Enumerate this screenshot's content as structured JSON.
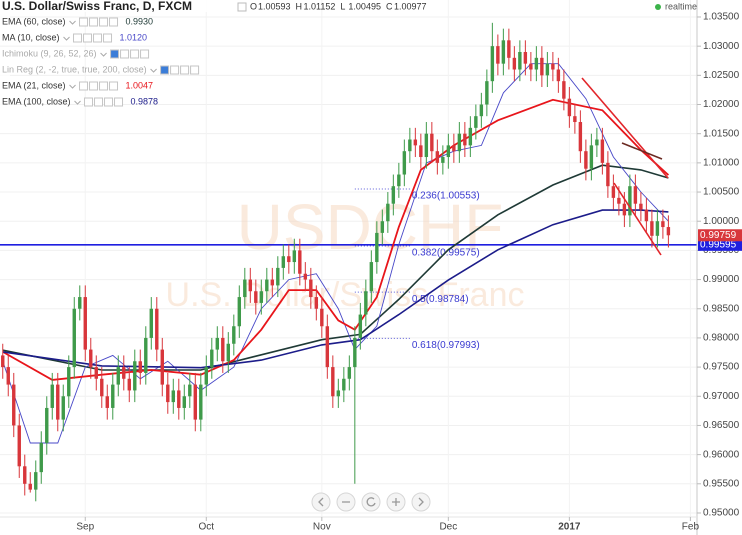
{
  "chart_data": {
    "type": "candlestick",
    "title": "U.S. Dollar/Swiss Franc, D, FXCM",
    "ohlc_header": [
      {
        "key": "O",
        "value": "1.00593"
      },
      {
        "key": "H",
        "value": "1.01152"
      },
      {
        "key": "L",
        "value": "1.00495"
      },
      {
        "key": "C",
        "value": "1.00977"
      }
    ],
    "status": "realtime",
    "watermark": {
      "symbol": "USDCHF",
      "description": "U.S. Dollar/Swiss Franc"
    },
    "up_color": "#3f9a4a",
    "down_color": "#d8363b",
    "x": [
      0,
      1,
      2,
      3,
      4,
      5,
      6,
      7,
      8,
      9,
      10,
      11,
      12,
      13,
      14,
      15,
      16,
      17,
      18,
      19,
      20,
      21,
      22,
      23,
      24,
      25,
      26,
      27,
      28,
      29,
      30,
      31,
      32,
      33,
      34,
      35,
      36,
      37,
      38,
      39,
      40,
      41,
      42,
      43,
      44,
      45,
      46,
      47,
      48,
      49,
      50,
      51,
      52,
      53,
      54,
      55,
      56,
      57,
      58,
      59,
      60,
      61,
      62,
      63,
      64,
      65,
      66,
      67,
      68,
      69,
      70,
      71,
      72,
      73,
      74,
      75,
      76,
      77,
      78,
      79,
      80,
      81,
      82,
      83,
      84,
      85,
      86,
      87,
      88,
      89,
      90,
      91,
      92,
      93,
      94,
      95,
      96,
      97,
      98,
      99,
      100,
      101,
      102,
      103,
      104,
      105,
      106,
      107,
      108,
      109,
      110,
      111,
      112,
      113,
      114,
      115,
      116,
      117,
      118,
      119,
      120,
      121
    ],
    "open": [
      0.977,
      0.975,
      0.972,
      0.965,
      0.958,
      0.955,
      0.954,
      0.957,
      0.962,
      0.968,
      0.972,
      0.966,
      0.97,
      0.975,
      0.985,
      0.987,
      0.978,
      0.975,
      0.973,
      0.97,
      0.968,
      0.972,
      0.975,
      0.973,
      0.971,
      0.976,
      0.974,
      0.98,
      0.985,
      0.978,
      0.972,
      0.969,
      0.971,
      0.968,
      0.97,
      0.972,
      0.966,
      0.972,
      0.975,
      0.978,
      0.98,
      0.976,
      0.979,
      0.982,
      0.987,
      0.99,
      0.988,
      0.986,
      0.988,
      0.99,
      0.989,
      0.992,
      0.994,
      0.993,
      0.995,
      0.991,
      0.99,
      0.987,
      0.985,
      0.982,
      0.975,
      0.97,
      0.971,
      0.973,
      0.975,
      0.98,
      0.984,
      0.988,
      0.993,
      0.998,
      1.0,
      1.003,
      1.006,
      1.008,
      1.012,
      1.014,
      1.013,
      1.011,
      1.015,
      1.012,
      1.01,
      1.011,
      1.013,
      1.012,
      1.015,
      1.013,
      1.016,
      1.018,
      1.02,
      1.024,
      1.03,
      1.027,
      1.031,
      1.028,
      1.026,
      1.029,
      1.027,
      1.026,
      1.028,
      1.025,
      1.027,
      1.026,
      1.024,
      1.021,
      1.018,
      1.017,
      1.012,
      1.009,
      1.013,
      1.014,
      1.01,
      1.006,
      1.004,
      1.003,
      1.001,
      1.006,
      1.003,
      1.002,
      1.0,
      0.9975,
      1.0,
      0.999
    ],
    "high": [
      0.979,
      0.977,
      0.974,
      0.967,
      0.96,
      0.957,
      0.959,
      0.964,
      0.97,
      0.974,
      0.974,
      0.972,
      0.977,
      0.987,
      0.989,
      0.989,
      0.98,
      0.977,
      0.975,
      0.972,
      0.974,
      0.977,
      0.977,
      0.975,
      0.978,
      0.978,
      0.982,
      0.987,
      0.987,
      0.98,
      0.974,
      0.973,
      0.973,
      0.972,
      0.974,
      0.974,
      0.974,
      0.977,
      0.98,
      0.982,
      0.982,
      0.981,
      0.984,
      0.989,
      0.992,
      0.992,
      0.99,
      0.99,
      0.992,
      0.992,
      0.994,
      0.996,
      0.996,
      0.997,
      0.997,
      0.993,
      0.992,
      0.989,
      0.987,
      0.984,
      0.977,
      0.973,
      0.975,
      0.977,
      0.982,
      0.986,
      0.99,
      0.995,
      1.0,
      1.002,
      1.005,
      1.008,
      1.01,
      1.014,
      1.016,
      1.016,
      1.015,
      1.017,
      1.017,
      1.014,
      1.013,
      1.015,
      1.015,
      1.017,
      1.017,
      1.018,
      1.02,
      1.022,
      1.026,
      1.034,
      1.032,
      1.033,
      1.033,
      1.03,
      1.031,
      1.031,
      1.029,
      1.03,
      1.03,
      1.029,
      1.029,
      1.028,
      1.026,
      1.023,
      1.02,
      1.019,
      1.014,
      1.015,
      1.016,
      1.016,
      1.012,
      1.008,
      1.006,
      1.005,
      1.008,
      1.008,
      1.005,
      1.004,
      1.002,
      1.002,
      1.002,
      1.001
    ],
    "low": [
      0.973,
      0.97,
      0.963,
      0.956,
      0.953,
      0.9535,
      0.952,
      0.955,
      0.96,
      0.966,
      0.964,
      0.964,
      0.968,
      0.973,
      0.983,
      0.976,
      0.973,
      0.971,
      0.968,
      0.966,
      0.966,
      0.97,
      0.971,
      0.969,
      0.969,
      0.972,
      0.972,
      0.978,
      0.976,
      0.97,
      0.967,
      0.967,
      0.966,
      0.966,
      0.968,
      0.964,
      0.964,
      0.97,
      0.973,
      0.976,
      0.974,
      0.974,
      0.977,
      0.98,
      0.985,
      0.986,
      0.984,
      0.984,
      0.986,
      0.987,
      0.987,
      0.99,
      0.991,
      0.991,
      0.989,
      0.988,
      0.985,
      0.983,
      0.98,
      0.973,
      0.968,
      0.968,
      0.969,
      0.971,
      0.955,
      0.978,
      0.982,
      0.986,
      0.991,
      0.996,
      0.998,
      1.001,
      1.004,
      1.006,
      1.01,
      1.011,
      1.009,
      1.009,
      1.01,
      1.008,
      1.008,
      1.009,
      1.01,
      1.01,
      1.011,
      1.011,
      1.014,
      1.016,
      1.018,
      1.022,
      1.025,
      1.025,
      1.026,
      1.024,
      1.024,
      1.025,
      1.024,
      1.024,
      1.023,
      1.023,
      1.024,
      1.022,
      1.019,
      1.016,
      1.015,
      1.01,
      1.007,
      1.007,
      1.011,
      1.008,
      1.004,
      1.002,
      1.001,
      0.999,
      0.999,
      1.001,
      1.0,
      0.998,
      0.9955,
      0.9955,
      0.997,
      0.9955
    ],
    "close": [
      0.975,
      0.972,
      0.965,
      0.958,
      0.955,
      0.954,
      0.957,
      0.962,
      0.968,
      0.972,
      0.966,
      0.97,
      0.975,
      0.985,
      0.987,
      0.978,
      0.975,
      0.973,
      0.97,
      0.968,
      0.972,
      0.975,
      0.973,
      0.971,
      0.976,
      0.974,
      0.98,
      0.985,
      0.978,
      0.972,
      0.969,
      0.971,
      0.968,
      0.97,
      0.972,
      0.966,
      0.972,
      0.975,
      0.978,
      0.98,
      0.976,
      0.979,
      0.982,
      0.987,
      0.99,
      0.988,
      0.986,
      0.988,
      0.99,
      0.989,
      0.992,
      0.994,
      0.993,
      0.995,
      0.991,
      0.99,
      0.987,
      0.985,
      0.982,
      0.975,
      0.97,
      0.971,
      0.973,
      0.975,
      0.98,
      0.984,
      0.988,
      0.993,
      0.998,
      1.0,
      1.003,
      1.006,
      1.008,
      1.012,
      1.014,
      1.013,
      1.011,
      1.015,
      1.012,
      1.01,
      1.011,
      1.013,
      1.012,
      1.015,
      1.013,
      1.016,
      1.018,
      1.02,
      1.024,
      1.03,
      1.027,
      1.031,
      1.028,
      1.026,
      1.029,
      1.027,
      1.026,
      1.028,
      1.025,
      1.027,
      1.026,
      1.024,
      1.021,
      1.018,
      1.017,
      1.012,
      1.009,
      1.013,
      1.014,
      1.01,
      1.006,
      1.004,
      1.003,
      1.001,
      1.006,
      1.003,
      1.002,
      1.0,
      0.9975,
      1.0,
      0.999,
      0.99759
    ],
    "series": [
      {
        "name": "EMA (60, close)",
        "legend_value": "0.9930",
        "color": "#1f3a36",
        "width": 1.6,
        "visible": true,
        "x": [
          0,
          18,
          36,
          47,
          58,
          65,
          72,
          81,
          90,
          100,
          109,
          116,
          121
        ],
        "values": [
          0.9779,
          0.9745,
          0.9745,
          0.9771,
          0.9797,
          0.9806,
          0.9866,
          0.9951,
          1.0011,
          1.0062,
          1.0096,
          1.0088,
          1.0074
        ]
      },
      {
        "name": "MA (10, close)",
        "legend_value": "1.0120",
        "color": "#4848c8",
        "width": 0.9,
        "visible": true,
        "x": [
          0,
          5,
          10,
          15,
          20,
          25,
          30,
          36,
          42,
          47,
          52,
          57,
          61,
          64,
          68,
          72,
          77,
          82,
          87,
          91,
          96,
          101,
          106,
          111,
          116,
          121
        ],
        "values": [
          0.976,
          0.962,
          0.962,
          0.975,
          0.977,
          0.973,
          0.976,
          0.971,
          0.975,
          0.985,
          0.99,
          0.991,
          0.985,
          0.978,
          0.982,
          0.996,
          1.01,
          1.012,
          1.013,
          1.022,
          1.027,
          1.027,
          1.021,
          1.011,
          1.005,
          1.0
        ]
      },
      {
        "name": "Ichimoku (9, 26, 52, 26)",
        "color": "#aaaaaa",
        "visible": false
      },
      {
        "name": "Lin Reg (2, -2, true, true, 200, close)",
        "color": "#aaaaaa",
        "visible": false
      },
      {
        "name": "EMA (21, close)",
        "legend_value": "1.0047",
        "color": "#e8151b",
        "width": 1.8,
        "visible": true,
        "x": [
          0,
          9,
          18,
          27,
          36,
          42,
          47,
          52,
          57,
          61,
          64,
          68,
          72,
          76,
          82,
          90,
          100,
          109,
          116,
          121
        ],
        "values": [
          0.9776,
          0.9728,
          0.9737,
          0.9745,
          0.9737,
          0.9762,
          0.9814,
          0.9882,
          0.9882,
          0.983,
          0.9814,
          0.987,
          0.999,
          1.0088,
          1.013,
          1.0173,
          1.0208,
          1.019,
          1.0122,
          1.0079
        ]
      },
      {
        "name": "EMA (100, close)",
        "legend_value": "0.9878",
        "color": "#1c1c8a",
        "width": 1.6,
        "visible": true,
        "x": [
          0,
          18,
          36,
          47,
          58,
          65,
          72,
          81,
          90,
          100,
          109,
          116,
          121
        ],
        "values": [
          0.9776,
          0.9752,
          0.9749,
          0.9762,
          0.9788,
          0.9797,
          0.984,
          0.9899,
          0.9951,
          0.9994,
          1.0019,
          1.0019,
          1.0016
        ]
      }
    ],
    "fib_levels": [
      {
        "label": "0.236(1.00553)",
        "value": 1.00553
      },
      {
        "label": "0.382(0.99575)",
        "value": 0.99575
      },
      {
        "label": "0.5(0.98784)",
        "value": 0.98784
      },
      {
        "label": "0.618(0.97993)",
        "value": 0.97993
      }
    ],
    "fib_range": [
      64,
      74
    ],
    "horizontal_line": {
      "value": 0.99595,
      "color": "#1f1fe0"
    },
    "last_price": 0.99759,
    "xlim": [
      -0.5,
      126.2
    ],
    "xticks": [
      {
        "value": 15,
        "label": "Sep"
      },
      {
        "value": 37,
        "label": "Oct"
      },
      {
        "value": 58,
        "label": "Nov"
      },
      {
        "value": 81,
        "label": "Dec"
      },
      {
        "value": 103,
        "label": "2017"
      },
      {
        "value": 125,
        "label": "Feb"
      }
    ],
    "ylim": [
      0.94931,
      1.03791
    ],
    "yticks": [
      {
        "value": 0.95,
        "label": "0.95000"
      },
      {
        "value": 0.955,
        "label": "0.95500"
      },
      {
        "value": 0.96,
        "label": "0.96000"
      },
      {
        "value": 0.965,
        "label": "0.96500"
      },
      {
        "value": 0.97,
        "label": "0.97000"
      },
      {
        "value": 0.975,
        "label": "0.97500"
      },
      {
        "value": 0.98,
        "label": "0.98000"
      },
      {
        "value": 0.985,
        "label": "0.98500"
      },
      {
        "value": 0.99,
        "label": "0.99000"
      },
      {
        "value": 0.995,
        "label": "0.99500"
      },
      {
        "value": 1.0,
        "label": "1.00000"
      },
      {
        "value": 1.005,
        "label": "1.00500"
      },
      {
        "value": 1.01,
        "label": "1.01000"
      },
      {
        "value": 1.015,
        "label": "1.01500"
      },
      {
        "value": 1.02,
        "label": "1.02000"
      },
      {
        "value": 1.025,
        "label": "1.02500"
      },
      {
        "value": 1.03,
        "label": "1.03000"
      },
      {
        "value": 1.035,
        "label": "1.03500"
      }
    ],
    "grid": true
  }
}
